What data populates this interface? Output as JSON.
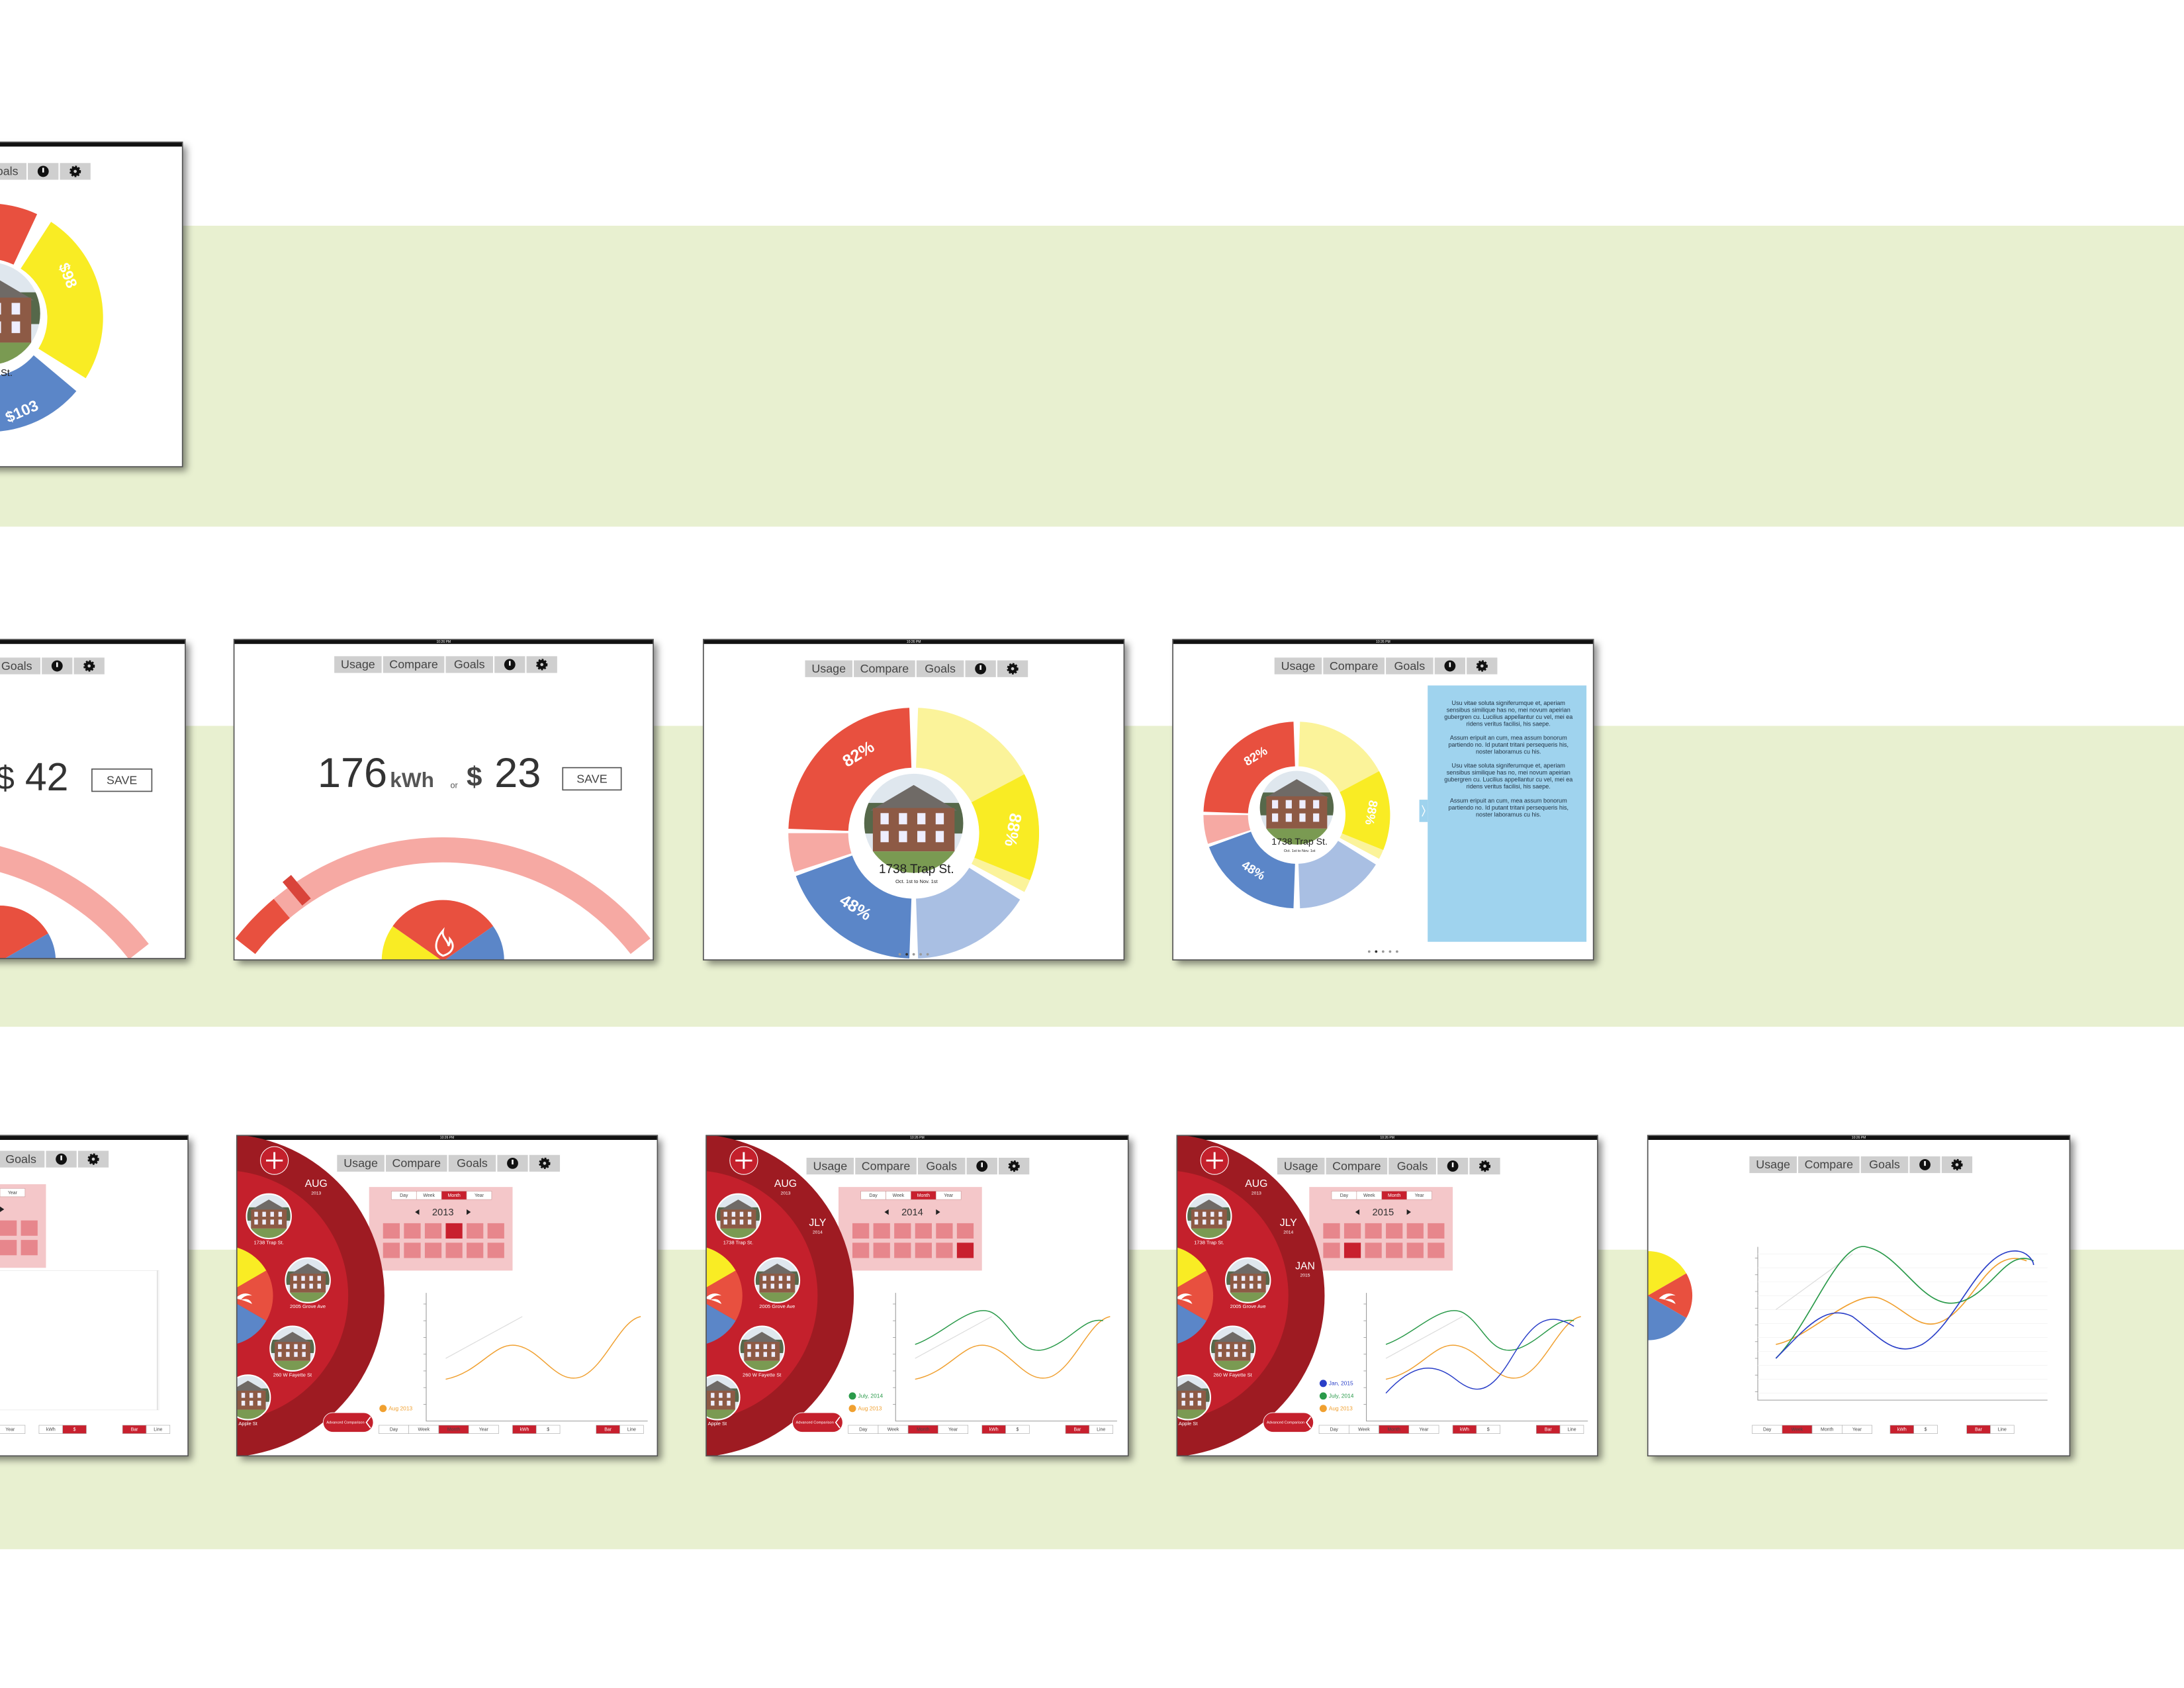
{
  "status_time": "10:26 PM",
  "nav": [
    "Usage",
    "Compare",
    "Goals"
  ],
  "budget_ring": {
    "electric": "$98",
    "water": "$103"
  },
  "savings_entry": {
    "currency": "$",
    "amount": "42",
    "save": "SAVE"
  },
  "usage_entry": {
    "value": "176",
    "unit": "kWh",
    "or": "or",
    "currency": "$",
    "cost": "23",
    "save": "SAVE"
  },
  "home_ring": {
    "gas": "82%",
    "electric": "88%",
    "water": "48%",
    "address": "1738 Trap St.",
    "period": "Oct. 1st to Nov. 1st"
  },
  "info_panel": {
    "paragraphs": [
      "Usu vitae soluta signiferumque et, aperiam sensibus similique has no, mei novum apeirian gubergren cu. Lucilius appellantur cu vel, mei ea ridens veritus facilisi, his saepe.",
      "Assum eripuit an cum, mea assum bonorum partiendo no. Id putant tritani persequeris his, noster laboramus cu his.",
      "Usu vitae soluta signiferumque et, aperiam sensibus similique has no, mei novum apeirian gubergren cu. Lucilius appellantur cu vel, mei ea ridens veritus facilisi, his saepe.",
      "Assum eripuit an cum, mea assum bonorum partiendo no. Id putant tritani persequeris his, noster laboramus cu his."
    ]
  },
  "compare": {
    "houses": [
      "1738 Trap St.",
      "2005 Grove Ave",
      "260 W Fayette St",
      "Apple St"
    ],
    "timeline": [
      {
        "month": "AUG",
        "year": "2013"
      },
      {
        "month": "JLY",
        "year": "2014"
      },
      {
        "month": "JAN",
        "year": "2015"
      }
    ],
    "picker_years": [
      "2013",
      "2014",
      "2015"
    ],
    "tabs": [
      "Day",
      "Week",
      "Month",
      "Year"
    ],
    "units": [
      "kWh",
      "$"
    ],
    "styles": [
      "Bar",
      "Line"
    ],
    "advanced": "Advanced Comparison",
    "legend": [
      {
        "label": "Aug 2013",
        "color": "#f0a030"
      },
      {
        "label": "July, 2014",
        "color": "#2a9a4a"
      },
      {
        "label": "Jan, 2015",
        "color": "#2a3fc8"
      }
    ]
  }
}
